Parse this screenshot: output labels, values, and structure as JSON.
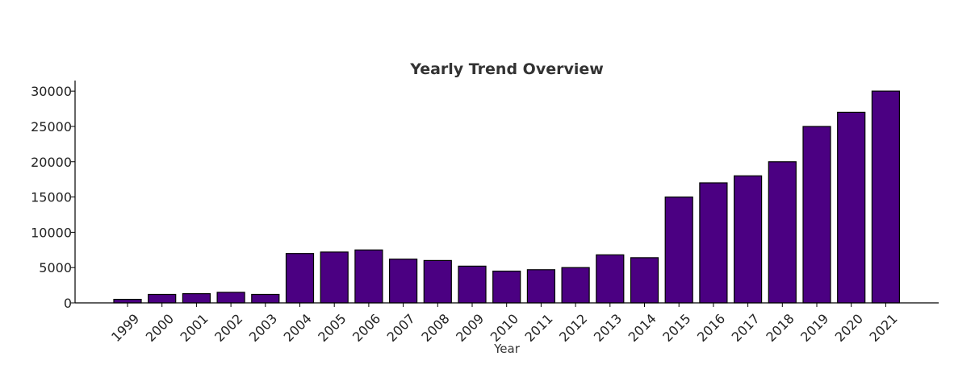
{
  "chart_data": {
    "type": "bar",
    "title": "Yearly Trend Overview",
    "xlabel": "Year",
    "ylabel": "",
    "categories": [
      "1999",
      "2000",
      "2001",
      "2002",
      "2003",
      "2004",
      "2005",
      "2006",
      "2007",
      "2008",
      "2009",
      "2010",
      "2011",
      "2012",
      "2013",
      "2014",
      "2015",
      "2016",
      "2017",
      "2018",
      "2019",
      "2020",
      "2021"
    ],
    "values": [
      500,
      1200,
      1300,
      1500,
      1200,
      7000,
      7200,
      7500,
      6200,
      6000,
      5200,
      4500,
      4700,
      5000,
      6800,
      6400,
      15000,
      17000,
      18000,
      20000,
      25000,
      27000,
      30000
    ],
    "ylim": [
      0,
      31500
    ],
    "yticks": [
      0,
      5000,
      10000,
      15000,
      20000,
      25000,
      30000
    ],
    "grid": false,
    "bar_color": "#4b0082",
    "edge_color": "#000000"
  }
}
